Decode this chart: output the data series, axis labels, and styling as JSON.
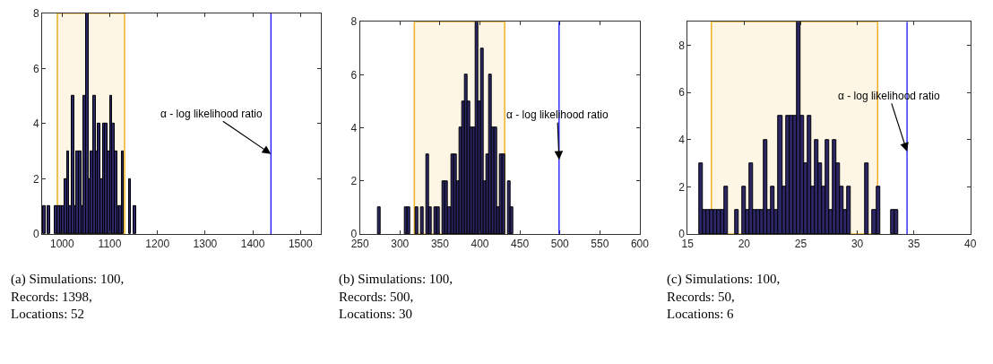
{
  "chart_data": [
    {
      "type": "histogram",
      "color": "#2b2766",
      "bins": [
        960,
        965,
        970,
        975,
        980,
        985,
        990,
        995,
        1000,
        1005,
        1010,
        1015,
        1020,
        1025,
        1030,
        1035,
        1040,
        1045,
        1050,
        1055,
        1060,
        1065,
        1070,
        1075,
        1080,
        1085,
        1090,
        1095,
        1100,
        1105,
        1110,
        1115,
        1120,
        1125,
        1130,
        1135,
        1140,
        1145,
        1150,
        1155
      ],
      "values": [
        1,
        0,
        1,
        0,
        0,
        1,
        1,
        1,
        1,
        2,
        3,
        1,
        5,
        1,
        3,
        3,
        1,
        5,
        8,
        2,
        3,
        5,
        3,
        4,
        2,
        4,
        4,
        3,
        5,
        4,
        3,
        1,
        1,
        3,
        0,
        0,
        2,
        0,
        1
      ],
      "xlim": [
        958,
        1543
      ],
      "xticks": [
        1000,
        1100,
        1200,
        1300,
        1400,
        1500
      ],
      "ylim": [
        0,
        8
      ],
      "yticks": [
        0,
        2,
        4,
        6,
        8
      ],
      "grid": false,
      "bands": [
        {
          "axis": "x",
          "from": 990,
          "to": 1131,
          "color": "#edb120"
        }
      ],
      "ref_lines": [
        {
          "axis": "x",
          "value": 1438,
          "color": "#0000ff"
        }
      ],
      "annotations": [
        {
          "text": "α - log likelihood ratio",
          "x": 1438,
          "y": 2.9
        },
        "(a) Simulations: 100,\nRecords: 1398,\nLocations: 52"
      ]
    },
    {
      "type": "histogram",
      "color": "#2b2766",
      "bins": [
        272,
        275.4,
        278.8,
        282.2,
        285.6,
        289,
        292.4,
        295.8,
        299.2,
        302.6,
        306,
        309.4,
        312.8,
        316.2,
        319.6,
        323,
        326.4,
        329.8,
        333.2,
        336.6,
        340,
        343.4,
        346.8,
        350.2,
        353.6,
        357,
        360.4,
        363.8,
        367.2,
        370.6,
        374,
        377.4,
        380.8,
        384.2,
        387.6,
        391,
        394.4,
        397.8,
        401.2,
        404.6,
        408,
        411.4,
        414.8,
        418.2,
        421.6,
        425,
        428.4,
        431.8,
        435.2,
        438.6,
        442
      ],
      "values": [
        1,
        0,
        0,
        0,
        0,
        0,
        0,
        0,
        0,
        0,
        1,
        1,
        0,
        0,
        1,
        0,
        1,
        0,
        3,
        1,
        0,
        1,
        1,
        0,
        2,
        2,
        1,
        3,
        3,
        2,
        4,
        5,
        6,
        5,
        4,
        4,
        8,
        5,
        7,
        2,
        3,
        6,
        4,
        4,
        1,
        3,
        3,
        0,
        2,
        1
      ],
      "xlim": [
        250,
        600
      ],
      "xticks": [
        250,
        300,
        350,
        400,
        450,
        500,
        550,
        600
      ],
      "ylim": [
        0,
        8
      ],
      "yticks": [
        0,
        2,
        4,
        6,
        8
      ],
      "grid": false,
      "bands": [
        {
          "axis": "x",
          "from": 318,
          "to": 431,
          "color": "#edb120"
        }
      ],
      "ref_lines": [
        {
          "axis": "x",
          "value": 499,
          "color": "#0000ff"
        }
      ],
      "annotations": [
        {
          "text": "α - log likelihood ratio",
          "x": 499,
          "y": 2.8
        },
        "(b) Simulations: 100,\nRecords: 500,\nLocations: 30"
      ]
    },
    {
      "type": "histogram",
      "color": "#2b2766",
      "bins": [
        16,
        16.32,
        16.64,
        16.96,
        17.28,
        17.6,
        17.92,
        18.24,
        18.56,
        18.88,
        19.2,
        19.52,
        19.84,
        20.16,
        20.48,
        20.8,
        21.12,
        21.44,
        21.76,
        22.08,
        22.4,
        22.72,
        23.04,
        23.36,
        23.68,
        24,
        24.32,
        24.64,
        24.96,
        25.28,
        25.6,
        25.92,
        26.24,
        26.56,
        26.88,
        27.2,
        27.52,
        27.84,
        28.16,
        28.48,
        28.8,
        29.12,
        29.44,
        29.76,
        30.08,
        30.4,
        30.72,
        31.04,
        31.36,
        31.68,
        32,
        32.32,
        32.64,
        32.96,
        33.28,
        33.6
      ],
      "values": [
        3,
        1,
        1,
        1,
        1,
        1,
        1,
        2,
        0,
        0,
        1,
        0,
        2,
        1,
        3,
        1,
        1,
        1,
        4,
        1,
        2,
        1,
        5,
        2,
        5,
        5,
        5,
        9,
        5,
        3,
        5,
        2,
        4,
        3,
        2,
        4,
        1,
        4,
        3,
        2,
        1,
        2,
        0,
        0,
        0,
        0,
        3,
        0,
        1,
        2,
        0,
        0,
        0,
        1,
        1
      ],
      "xlim": [
        15,
        40
      ],
      "xticks": [
        15,
        20,
        25,
        30,
        35,
        40
      ],
      "ylim": [
        0,
        9
      ],
      "yticks": [
        0,
        2,
        4,
        6,
        8
      ],
      "grid": false,
      "bands": [
        {
          "axis": "x",
          "from": 17.1,
          "to": 31.8,
          "color": "#edb120"
        }
      ],
      "ref_lines": [
        {
          "axis": "x",
          "value": 34.4,
          "color": "#0000ff"
        }
      ],
      "annotations": [
        {
          "text": "α - log likelihood ratio",
          "x": 34.4,
          "y": 3.5
        },
        "(c) Simulations: 100,\nRecords: 50,\nLocations: 6"
      ]
    }
  ]
}
